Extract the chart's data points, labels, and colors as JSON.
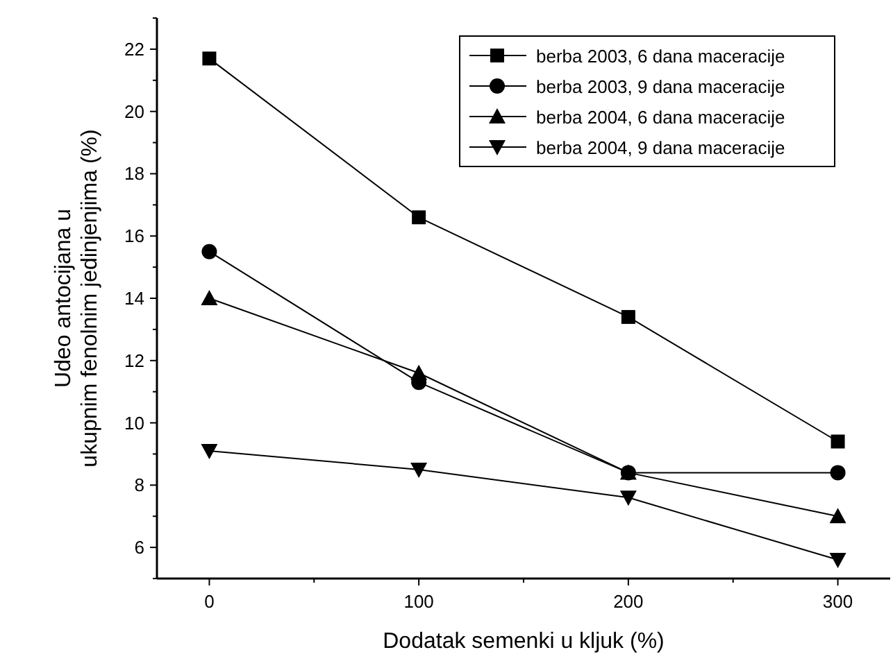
{
  "chart_data": {
    "type": "line",
    "xlabel": "Dodatak semenki u kljuk (%)",
    "ylabel": "Udeo antocijana u\nukupnim fenolnim jedinjenjima (%)",
    "x": [
      0,
      100,
      200,
      300
    ],
    "xlim": [
      -25,
      325
    ],
    "xticks": [
      0,
      {
        "value": 50,
        "label": null
      },
      100,
      {
        "value": 150,
        "label": null
      },
      200,
      {
        "value": 250,
        "label": null
      },
      300
    ],
    "ylim": [
      5,
      23
    ],
    "yticks": [
      {
        "value": 5,
        "label": null
      },
      6,
      {
        "value": 7,
        "label": null
      },
      8,
      {
        "value": 9,
        "label": null
      },
      10,
      {
        "value": 11,
        "label": null
      },
      12,
      {
        "value": 13,
        "label": null
      },
      14,
      {
        "value": 15,
        "label": null
      },
      16,
      {
        "value": 17,
        "label": null
      },
      18,
      {
        "value": 19,
        "label": null
      },
      20,
      {
        "value": 21,
        "label": null
      },
      22,
      {
        "value": 23,
        "label": null
      }
    ],
    "grid": false,
    "legend": "top right",
    "line_style": "solid",
    "series": [
      {
        "name": "berba 2003, 6 dana maceracije",
        "color": "#000000",
        "marker": "square",
        "values": [
          21.7,
          16.6,
          13.4,
          9.4
        ]
      },
      {
        "name": "berba 2003, 9 dana maceracije",
        "color": "#000000",
        "marker": "circle",
        "values": [
          15.5,
          11.3,
          8.4,
          8.4
        ]
      },
      {
        "name": "berba 2004, 6 dana maceracije",
        "color": "#000000",
        "marker": "triangle",
        "values": [
          14.0,
          11.6,
          8.4,
          7.0
        ]
      },
      {
        "name": "berba 2004, 9 dana maceracije",
        "color": "#000000",
        "marker": "triangle-down",
        "values": [
          9.1,
          8.5,
          7.6,
          5.6
        ]
      }
    ]
  }
}
